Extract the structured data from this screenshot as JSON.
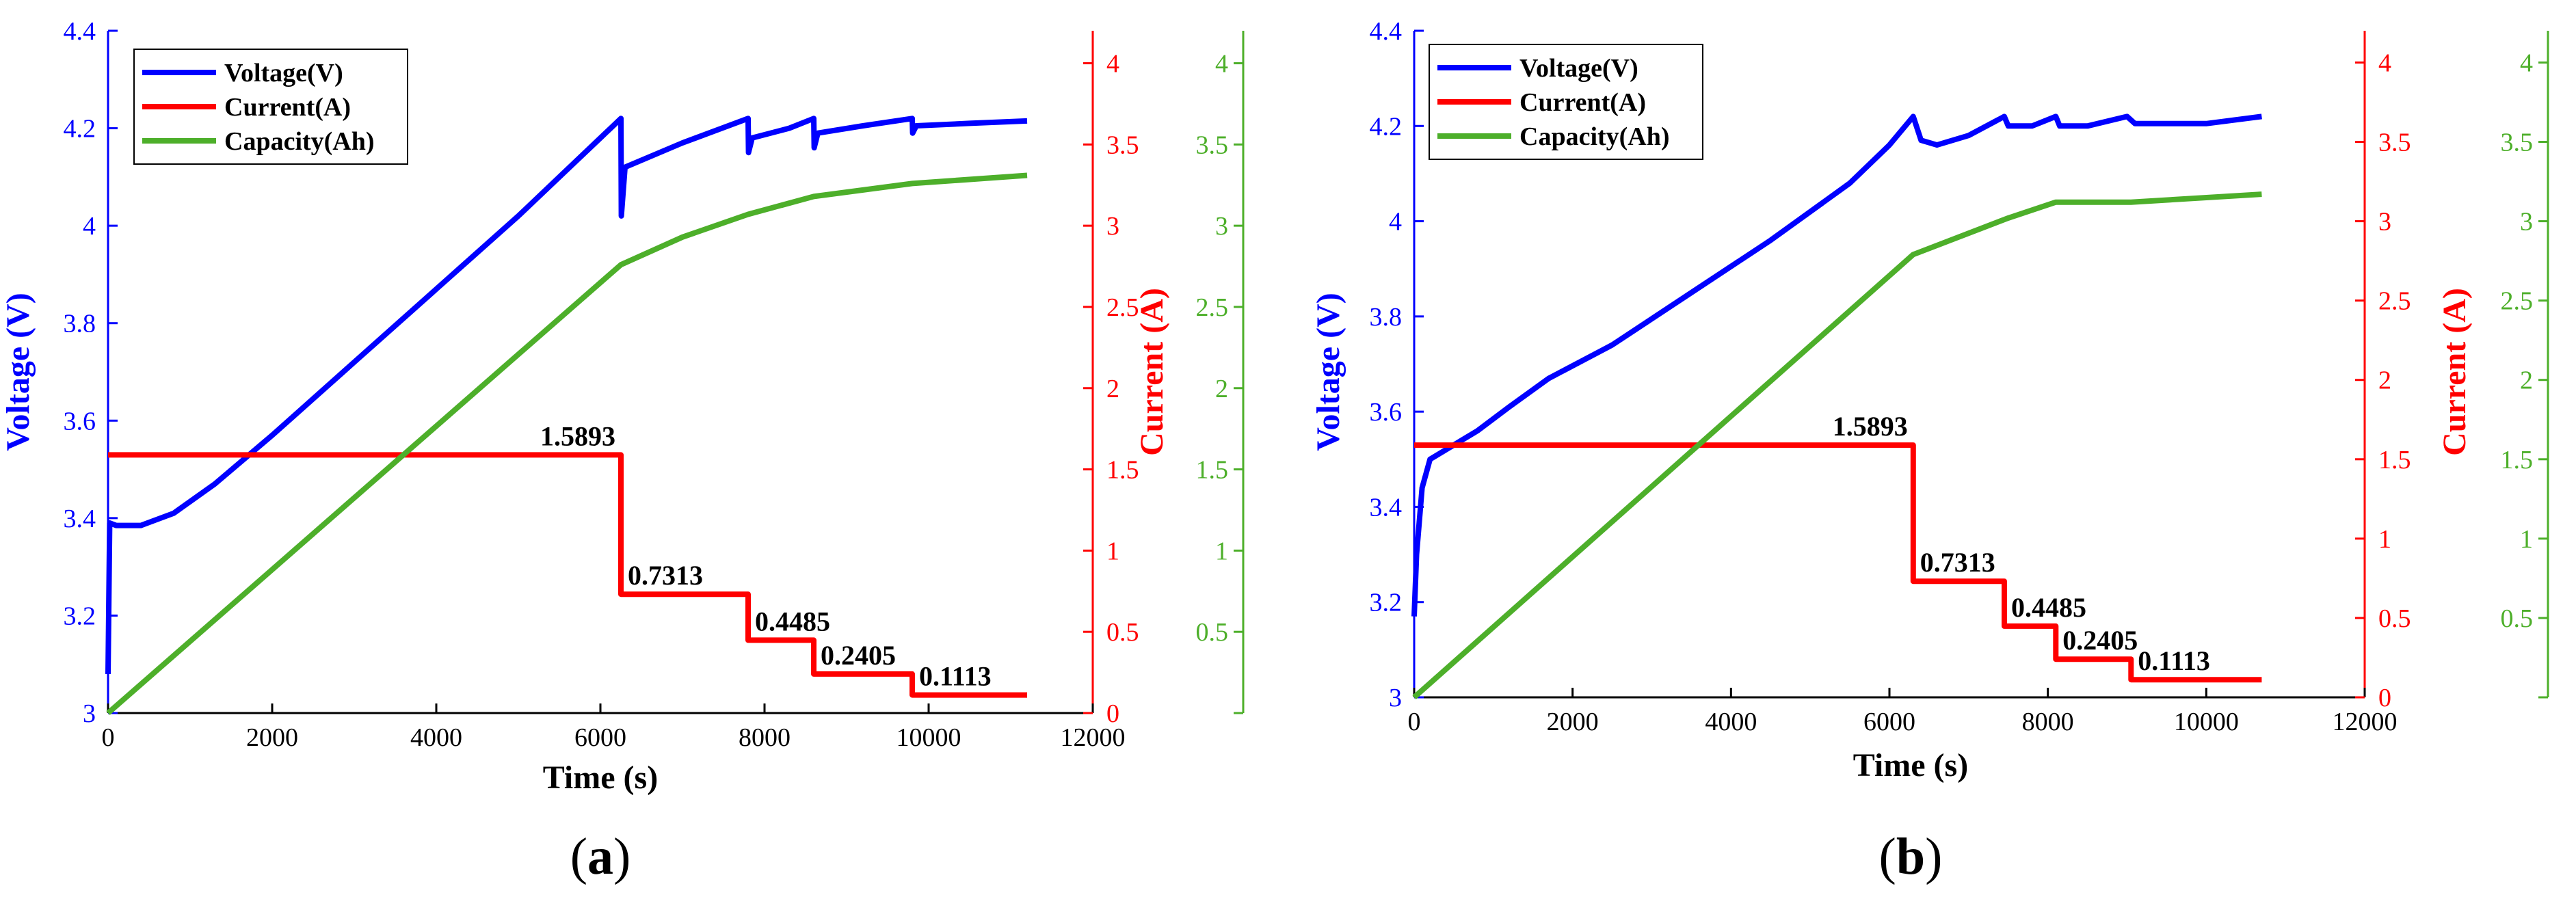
{
  "figure": {
    "panels": [
      {
        "label": "(a)",
        "label_prefix": "(",
        "label_letter": "a",
        "label_suffix": ")",
        "xlabel": "Time (s)",
        "ylabel_left": "Voltage (V)",
        "ylabel_right": "Current (A)",
        "xticks": [
          "0",
          "2000",
          "4000",
          "6000",
          "8000",
          "10000",
          "12000"
        ],
        "yticks_left": [
          "3",
          "3.2",
          "3.4",
          "3.6",
          "3.8",
          "4",
          "4.2",
          "4.4"
        ],
        "yticks_right": [
          "0",
          "0.5",
          "1",
          "1.5",
          "2",
          "2.5",
          "3",
          "3.5",
          "4"
        ],
        "yticks_right2": [
          "0.5",
          "1",
          "1.5",
          "2",
          "2.5",
          "3",
          "3.5",
          "4"
        ],
        "legend": [
          "Voltage(V)",
          "Current(A)",
          "Capacity(Ah)"
        ],
        "step_labels": [
          "1.5893",
          "0.7313",
          "0.4485",
          "0.2405",
          "0.1113"
        ]
      },
      {
        "label": "(b)",
        "label_prefix": "(",
        "label_letter": "b",
        "label_suffix": ")",
        "xlabel": "Time (s)",
        "ylabel_left": "Voltage (V)",
        "ylabel_right": "Current (A)",
        "xticks": [
          "0",
          "2000",
          "4000",
          "6000",
          "8000",
          "10000",
          "12000"
        ],
        "yticks_left": [
          "3",
          "3.2",
          "3.4",
          "3.6",
          "3.8",
          "4",
          "4.2",
          "4.4"
        ],
        "yticks_right": [
          "0",
          "0.5",
          "1",
          "1.5",
          "2",
          "2.5",
          "3",
          "3.5",
          "4"
        ],
        "yticks_right2": [
          "0.5",
          "1",
          "1.5",
          "2",
          "2.5",
          "3",
          "3.5",
          "4"
        ],
        "legend": [
          "Voltage(V)",
          "Current(A)",
          "Capacity(Ah)"
        ],
        "step_labels": [
          "1.5893",
          "0.7313",
          "0.4485",
          "0.2405",
          "0.1113"
        ]
      }
    ],
    "colors": {
      "voltage": "#0000ff",
      "current": "#ff0000",
      "capacity": "#4daf2a",
      "axis": "#000000"
    }
  },
  "chart_data": [
    {
      "type": "line",
      "title": "",
      "xlabel": "Time (s)",
      "xlim": [
        0,
        12000
      ],
      "ylabel": "Voltage (V)",
      "ylim": [
        3,
        4.4
      ],
      "ylabel_right": "Current (A)",
      "ylim_right": [
        0,
        4.2
      ],
      "ylim_right2": [
        0,
        4.2
      ],
      "legend_position": "top-left",
      "series": [
        {
          "name": "Voltage(V)",
          "axis": "left",
          "points": [
            [
              0,
              3.08
            ],
            [
              20,
              3.39
            ],
            [
              100,
              3.385
            ],
            [
              400,
              3.385
            ],
            [
              800,
              3.41
            ],
            [
              1300,
              3.47
            ],
            [
              2000,
              3.57
            ],
            [
              3000,
              3.72
            ],
            [
              4000,
              3.87
            ],
            [
              5000,
              4.02
            ],
            [
              6000,
              4.18
            ],
            [
              6250,
              4.22
            ],
            [
              6255,
              4.02
            ],
            [
              6300,
              4.12
            ],
            [
              7000,
              4.17
            ],
            [
              7800,
              4.22
            ],
            [
              7805,
              4.15
            ],
            [
              7850,
              4.18
            ],
            [
              8300,
              4.2
            ],
            [
              8600,
              4.22
            ],
            [
              8605,
              4.16
            ],
            [
              8650,
              4.19
            ],
            [
              9200,
              4.205
            ],
            [
              9800,
              4.22
            ],
            [
              9805,
              4.19
            ],
            [
              9850,
              4.205
            ],
            [
              10500,
              4.21
            ],
            [
              11200,
              4.215
            ]
          ]
        },
        {
          "name": "Current(A)",
          "axis": "right",
          "points": [
            [
              0,
              1.5893
            ],
            [
              6250,
              1.5893
            ],
            [
              6250,
              0.7313
            ],
            [
              7800,
              0.7313
            ],
            [
              7800,
              0.4485
            ],
            [
              8600,
              0.4485
            ],
            [
              8600,
              0.2405
            ],
            [
              9800,
              0.2405
            ],
            [
              9800,
              0.1113
            ],
            [
              11200,
              0.1113
            ]
          ]
        },
        {
          "name": "Capacity(Ah)",
          "axis": "right2",
          "points": [
            [
              0,
              0
            ],
            [
              6250,
              2.76
            ],
            [
              7000,
              2.93
            ],
            [
              7800,
              3.07
            ],
            [
              8600,
              3.18
            ],
            [
              9800,
              3.26
            ],
            [
              11200,
              3.31
            ]
          ]
        }
      ]
    },
    {
      "type": "line",
      "title": "",
      "xlabel": "Time (s)",
      "xlim": [
        0,
        12000
      ],
      "ylabel": "Voltage (V)",
      "ylim": [
        3,
        4.4
      ],
      "ylabel_right": "Current (A)",
      "ylim_right": [
        0,
        4.2
      ],
      "ylim_right2": [
        0,
        4.2
      ],
      "legend_position": "top-left",
      "series": [
        {
          "name": "Voltage(V)",
          "axis": "left",
          "points": [
            [
              0,
              3.17
            ],
            [
              30,
              3.3
            ],
            [
              100,
              3.44
            ],
            [
              200,
              3.5
            ],
            [
              400,
              3.52
            ],
            [
              800,
              3.56
            ],
            [
              1200,
              3.61
            ],
            [
              1700,
              3.67
            ],
            [
              2500,
              3.74
            ],
            [
              3500,
              3.85
            ],
            [
              4500,
              3.96
            ],
            [
              5500,
              4.08
            ],
            [
              6000,
              4.16
            ],
            [
              6300,
              4.22
            ],
            [
              6400,
              4.17
            ],
            [
              6600,
              4.16
            ],
            [
              7000,
              4.18
            ],
            [
              7450,
              4.22
            ],
            [
              7500,
              4.2
            ],
            [
              7800,
              4.2
            ],
            [
              8100,
              4.22
            ],
            [
              8150,
              4.2
            ],
            [
              8500,
              4.2
            ],
            [
              9000,
              4.22
            ],
            [
              9100,
              4.205
            ],
            [
              10000,
              4.205
            ],
            [
              10700,
              4.22
            ]
          ]
        },
        {
          "name": "Current(A)",
          "axis": "right",
          "points": [
            [
              0,
              1.5893
            ],
            [
              6300,
              1.5893
            ],
            [
              6300,
              0.7313
            ],
            [
              7450,
              0.7313
            ],
            [
              7450,
              0.4485
            ],
            [
              8100,
              0.4485
            ],
            [
              8100,
              0.2405
            ],
            [
              9050,
              0.2405
            ],
            [
              9050,
              0.1113
            ],
            [
              10700,
              0.1113
            ]
          ]
        },
        {
          "name": "Capacity(Ah)",
          "axis": "right2",
          "points": [
            [
              0,
              0
            ],
            [
              6300,
              2.79
            ],
            [
              7500,
              3.02
            ],
            [
              8100,
              3.12
            ],
            [
              9050,
              3.12
            ],
            [
              10700,
              3.17
            ]
          ]
        }
      ]
    }
  ]
}
